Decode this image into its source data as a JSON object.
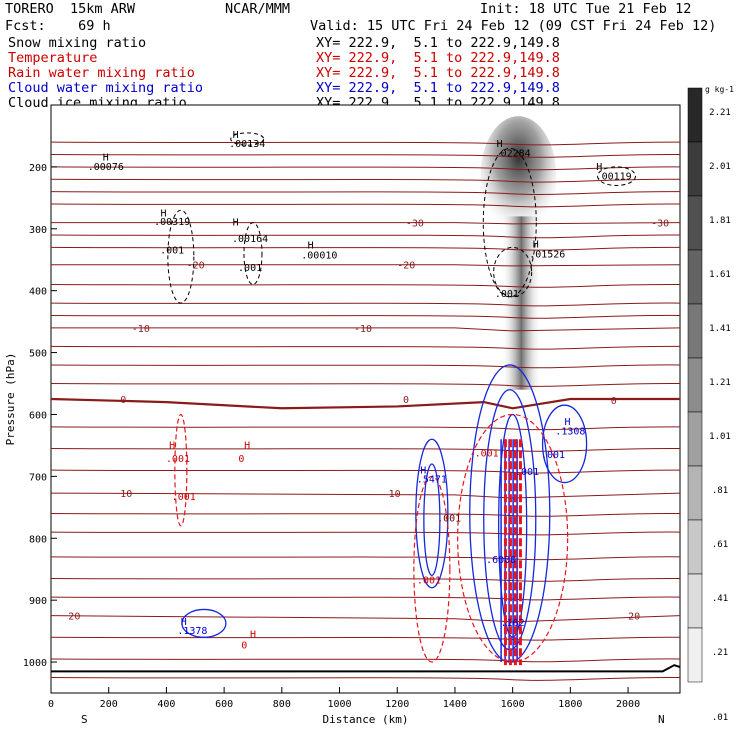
{
  "header": {
    "model": "TORERO  15km ARW",
    "org": "NCAR/MMM",
    "init": "Init: 18 UTC Tue 21 Feb 12",
    "fcst": "Fcst:    69 h",
    "valid": "Valid: 15 UTC Fri 24 Feb 12 (09 CST Fri 24 Feb 12)"
  },
  "legend": [
    {
      "label": "Snow mixing ratio",
      "xy": "XY= 222.9,  5.1 to 222.9,149.8",
      "color": "#000000"
    },
    {
      "label": "Temperature",
      "xy": "XY= 222.9,  5.1 to 222.9,149.8",
      "color": "#cc0000"
    },
    {
      "label": "Rain water mixing ratio",
      "xy": "XY= 222.9,  5.1 to 222.9,149.8",
      "color": "#cc0000"
    },
    {
      "label": "Cloud water mixing ratio",
      "xy": "XY= 222.9,  5.1 to 222.9,149.8",
      "color": "#0000cc"
    },
    {
      "label": "Cloud ice mixing ratio",
      "xy": "XY= 222.9,  5.1 to 222.9,149.8",
      "color": "#000000"
    }
  ],
  "colors": {
    "isotherm": "#8b1a1a",
    "rain": "#e8141e",
    "cloudwater": "#1428dc",
    "ice": "#000000",
    "ground": "#000000"
  },
  "chart_data": {
    "type": "cross-section",
    "xlabel": "Distance (km)",
    "ylabel": "Pressure (hPa)",
    "xlim": [
      0,
      2180
    ],
    "ylim": [
      1050,
      100
    ],
    "xticks": [
      0,
      200,
      400,
      600,
      800,
      1000,
      1200,
      1400,
      1600,
      1800,
      2000
    ],
    "yticks": [
      200,
      300,
      400,
      500,
      600,
      700,
      800,
      900,
      1000
    ],
    "x_end_labels": {
      "left": "S",
      "right": "N"
    },
    "colorbar": {
      "unit": "g kg-1",
      "ticks": [
        "2.21",
        "2.01",
        "1.81",
        "1.61",
        "1.41",
        "1.21",
        "1.01",
        ".81",
        ".61",
        ".41",
        ".21",
        ".01"
      ]
    },
    "isotherms": [
      {
        "label": "-30",
        "points": [
          [
            0,
            290
          ],
          [
            1400,
            290
          ],
          [
            1600,
            292
          ],
          [
            2180,
            290
          ]
        ],
        "label_x": 1230,
        "label_x2": 2080
      },
      {
        "label": "-20",
        "points": [
          [
            0,
            358
          ],
          [
            1400,
            358
          ],
          [
            1600,
            360
          ],
          [
            2180,
            358
          ]
        ],
        "label_x": 470,
        "label_x2": 1200
      },
      {
        "label": "-10",
        "points": [
          [
            0,
            460
          ],
          [
            1400,
            460
          ],
          [
            1600,
            465
          ],
          [
            2180,
            460
          ]
        ],
        "label_x": 280,
        "label_x2": 1050
      },
      {
        "label": "0",
        "points": [
          [
            0,
            575
          ],
          [
            400,
            580
          ],
          [
            800,
            590
          ],
          [
            1200,
            587
          ],
          [
            1500,
            580
          ],
          [
            1600,
            590
          ],
          [
            1800,
            575
          ],
          [
            2180,
            575
          ]
        ],
        "label_x": 240,
        "label_x2": 1220
      },
      {
        "label": "10",
        "points": [
          [
            0,
            727
          ],
          [
            1400,
            730
          ],
          [
            1600,
            735
          ],
          [
            2180,
            727
          ]
        ],
        "label_x": 240,
        "label_x2": 1170
      },
      {
        "label": "20",
        "points": [
          [
            0,
            925
          ],
          [
            1400,
            930
          ],
          [
            1600,
            935
          ],
          [
            2180,
            925
          ]
        ],
        "label_x": 60,
        "label_x2": 2000
      }
    ],
    "extra_isotherms": [
      160,
      180,
      200,
      220,
      240,
      260,
      310,
      330,
      390,
      420,
      440,
      490,
      520,
      550,
      620,
      655,
      690,
      760,
      790,
      830,
      865,
      895,
      960,
      995,
      1025
    ],
    "freezing_level": {
      "label": "0",
      "label_x": 1940
    },
    "ground_p": 1015,
    "annotations": [
      {
        "text": "H",
        "x": 190,
        "p": 190,
        "color": "#000000"
      },
      {
        "text": ".00076",
        "x": 190,
        "p": 205,
        "color": "#000000"
      },
      {
        "text": "H",
        "x": 640,
        "p": 153,
        "color": "#000000"
      },
      {
        "text": ".00134",
        "x": 680,
        "p": 168,
        "color": "#000000"
      },
      {
        "text": "H",
        "x": 1555,
        "p": 168,
        "color": "#000000"
      },
      {
        "text": ".02284",
        "x": 1600,
        "p": 183,
        "color": "#000000"
      },
      {
        "text": "H",
        "x": 1900,
        "p": 205,
        "color": "#000000"
      },
      {
        "text": ".00119",
        "x": 1950,
        "p": 220,
        "color": "#000000"
      },
      {
        "text": "H",
        "x": 390,
        "p": 280,
        "color": "#000000"
      },
      {
        "text": ".00319",
        "x": 420,
        "p": 294,
        "color": "#000000"
      },
      {
        "text": "H",
        "x": 640,
        "p": 295,
        "color": "#000000"
      },
      {
        "text": ".00164",
        "x": 690,
        "p": 321,
        "color": "#000000"
      },
      {
        "text": ".001",
        "x": 420,
        "p": 340,
        "color": "#000000"
      },
      {
        "text": ".001",
        "x": 690,
        "p": 368,
        "color": "#000000"
      },
      {
        "text": "H",
        "x": 900,
        "p": 332,
        "color": "#000000"
      },
      {
        "text": ".00010",
        "x": 930,
        "p": 348,
        "color": "#000000"
      },
      {
        "text": "H",
        "x": 1680,
        "p": 330,
        "color": "#000000"
      },
      {
        "text": ".01526",
        "x": 1720,
        "p": 346,
        "color": "#000000"
      },
      {
        "text": ".001",
        "x": 1580,
        "p": 410,
        "color": "#000000"
      },
      {
        "text": "H",
        "x": 420,
        "p": 655,
        "color": "#cc0000"
      },
      {
        "text": ".001",
        "x": 440,
        "p": 677,
        "color": "#cc0000"
      },
      {
        "text": "H",
        "x": 680,
        "p": 655,
        "color": "#cc0000"
      },
      {
        "text": "0",
        "x": 660,
        "p": 677,
        "color": "#cc0000"
      },
      {
        "text": ".001",
        "x": 460,
        "p": 738,
        "color": "#cc0000"
      },
      {
        "text": "H",
        "x": 1790,
        "p": 617,
        "color": "#0000cc"
      },
      {
        "text": ".1308",
        "x": 1800,
        "p": 632,
        "color": "#0000cc"
      },
      {
        "text": ".001",
        "x": 1740,
        "p": 670,
        "color": "#0000cc"
      },
      {
        "text": "H",
        "x": 1290,
        "p": 695,
        "color": "#0000cc"
      },
      {
        "text": ".5471",
        "x": 1320,
        "p": 710,
        "color": "#0000cc"
      },
      {
        "text": ".001",
        "x": 1380,
        "p": 773,
        "color": "#660000"
      },
      {
        "text": ".001",
        "x": 1510,
        "p": 668,
        "color": "#cc0000"
      },
      {
        "text": ".001",
        "x": 1650,
        "p": 698,
        "color": "#0000cc"
      },
      {
        "text": ".001",
        "x": 1310,
        "p": 873,
        "color": "#cc0000"
      },
      {
        "text": ".6000",
        "x": 1560,
        "p": 840,
        "color": "#0000cc"
      },
      {
        "text": ".162",
        "x": 1600,
        "p": 942,
        "color": "#0000cc"
      },
      {
        "text": "H",
        "x": 460,
        "p": 940,
        "color": "#0000cc"
      },
      {
        "text": ".1378",
        "x": 490,
        "p": 955,
        "color": "#0000cc"
      },
      {
        "text": "H",
        "x": 700,
        "p": 960,
        "color": "#cc0000"
      },
      {
        "text": "0",
        "x": 670,
        "p": 978,
        "color": "#cc0000"
      }
    ]
  }
}
